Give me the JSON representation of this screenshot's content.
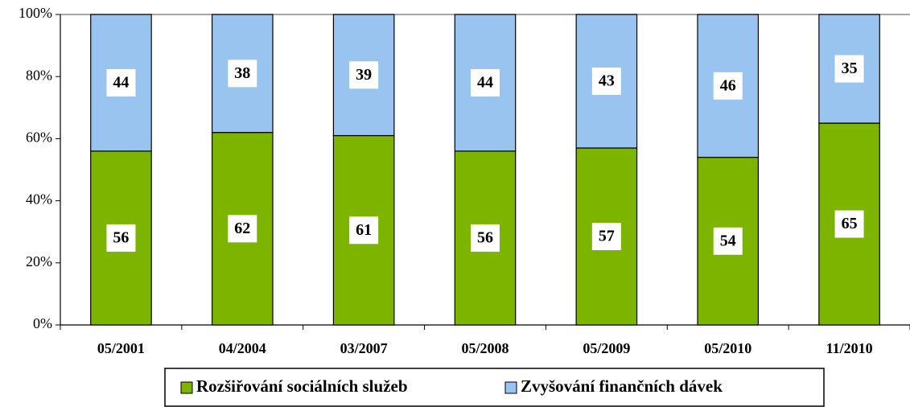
{
  "chart_data": {
    "type": "stacked_bar",
    "categories": [
      "05/2001",
      "04/2004",
      "03/2007",
      "05/2008",
      "05/2009",
      "05/2010",
      "11/2010"
    ],
    "series": [
      {
        "name": "Rozšiřování sociálních služeb",
        "color": "#7cb400",
        "values": [
          56,
          62,
          61,
          56,
          57,
          54,
          65
        ]
      },
      {
        "name": "Zvyšování finančních dávek",
        "color": "#99c4f0",
        "values": [
          44,
          38,
          39,
          44,
          43,
          46,
          35
        ]
      }
    ],
    "ylim": [
      0,
      100
    ],
    "yticks": [
      {
        "value": 0,
        "label": "0%"
      },
      {
        "value": 20,
        "label": "20%"
      },
      {
        "value": 40,
        "label": "40%"
      },
      {
        "value": 60,
        "label": "60%"
      },
      {
        "value": 80,
        "label": "80%"
      },
      {
        "value": 100,
        "label": "100%"
      }
    ],
    "legend": "bottom"
  }
}
